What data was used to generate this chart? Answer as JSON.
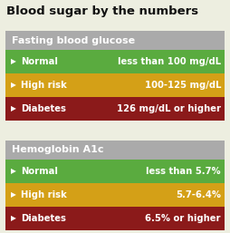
{
  "title": "Blood sugar by the numbers",
  "background_color": "#edeee0",
  "title_fontsize": 9.5,
  "title_color": "#111111",
  "header_bg": "#aaaaaa",
  "header_fontsize": 8.0,
  "row_fontsize": 7.2,
  "row_colors": [
    "#5aab3f",
    "#d4a017",
    "#8b1a1a"
  ],
  "sections": [
    {
      "header": "Fasting blood glucose",
      "rows": [
        {
          "label": "Normal",
          "value": "less than 100 mg/dL"
        },
        {
          "label": "High risk",
          "value": "100-125 mg/dL"
        },
        {
          "label": "Diabetes",
          "value": "126 mg/dL or higher"
        }
      ]
    },
    {
      "header": "Hemoglobin A1c",
      "rows": [
        {
          "label": "Normal",
          "value": "less than 5.7%"
        },
        {
          "label": "High risk",
          "value": "5.7-6.4%"
        },
        {
          "label": "Diabetes",
          "value": "6.5% or higher"
        }
      ]
    }
  ]
}
